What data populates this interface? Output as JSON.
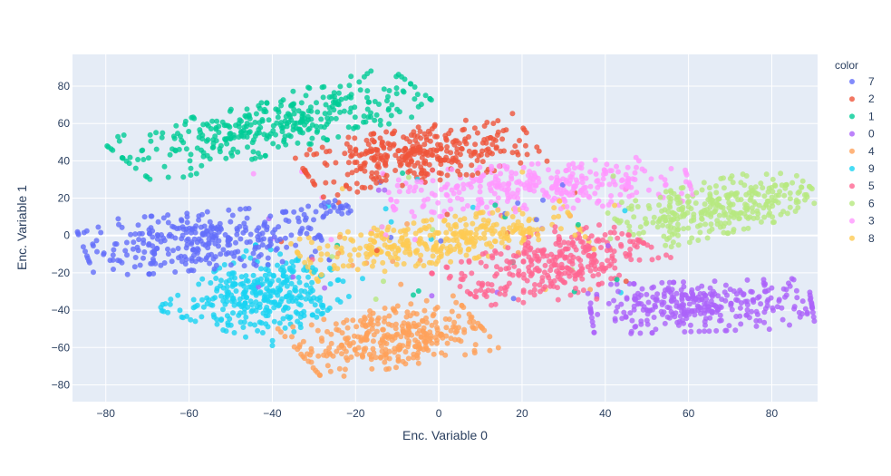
{
  "chart_data": {
    "type": "scatter",
    "xlabel": "Enc. Variable 0",
    "ylabel": "Enc. Variable 1",
    "xlim": [
      -88,
      91
    ],
    "ylim": [
      -89,
      97
    ],
    "x_ticks": [
      -80,
      -60,
      -40,
      -20,
      0,
      20,
      40,
      60,
      80
    ],
    "y_ticks": [
      -80,
      -60,
      -40,
      -20,
      0,
      20,
      40,
      60,
      80
    ],
    "grid": true,
    "legend": {
      "title": "color",
      "placement": "right"
    },
    "series": [
      {
        "name": "7",
        "color": "#636efa",
        "clusters": [
          {
            "cx": -57,
            "cy": -3,
            "sx": 15,
            "sy": 8,
            "rot": 10,
            "n": 320
          },
          {
            "cx": -26,
            "cy": 13,
            "sx": 4,
            "sy": 3,
            "rot": 0,
            "n": 25
          }
        ]
      },
      {
        "name": "2",
        "color": "#EF553B",
        "clusters": [
          {
            "cx": -5,
            "cy": 43,
            "sx": 15,
            "sy": 7.5,
            "rot": 18,
            "n": 340
          }
        ]
      },
      {
        "name": "1",
        "color": "#00cc96",
        "clusters": [
          {
            "cx": -40,
            "cy": 59,
            "sx": 21,
            "sy": 7,
            "rot": 30,
            "n": 360
          }
        ]
      },
      {
        "name": "0",
        "color": "#ab63fa",
        "clusters": [
          {
            "cx": 63,
            "cy": -38,
            "sx": 14,
            "sy": 7,
            "rot": 4,
            "n": 330
          }
        ]
      },
      {
        "name": "4",
        "color": "#FFA15A",
        "clusters": [
          {
            "cx": -12,
            "cy": -55,
            "sx": 12,
            "sy": 8,
            "rot": 22,
            "n": 330
          }
        ]
      },
      {
        "name": "9",
        "color": "#19d3f3",
        "clusters": [
          {
            "cx": -42,
            "cy": -32,
            "sx": 9,
            "sy": 11,
            "rot": -35,
            "n": 330
          }
        ]
      },
      {
        "name": "5",
        "color": "#FF6692",
        "clusters": [
          {
            "cx": 27,
            "cy": -16,
            "sx": 13,
            "sy": 8,
            "rot": 40,
            "n": 320
          }
        ]
      },
      {
        "name": "6",
        "color": "#B6E880",
        "clusters": [
          {
            "cx": 67,
            "cy": 15,
            "sx": 13,
            "sy": 7,
            "rot": 28,
            "n": 320
          }
        ]
      },
      {
        "name": "3",
        "color": "#FF97FF",
        "clusters": [
          {
            "cx": 24,
            "cy": 26,
            "sx": 19,
            "sy": 6.5,
            "rot": 8,
            "n": 330
          }
        ]
      },
      {
        "name": "8",
        "color": "#FECB52",
        "clusters": [
          {
            "cx": 0,
            "cy": -3,
            "sx": 18,
            "sy": 6,
            "rot": 18,
            "n": 340
          }
        ]
      }
    ],
    "notes_visual": "t-SNE style 2D embedding; each class forms one cluster; points semi-transparent, size ~5px"
  },
  "colors": {
    "plot_background": "#E5ECF6",
    "grid": "#ffffff",
    "text": "#2a3f5f"
  }
}
